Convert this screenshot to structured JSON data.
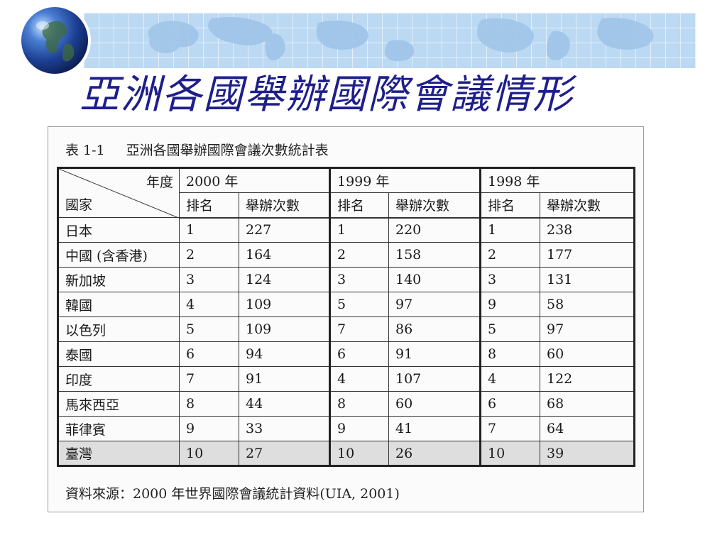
{
  "slide": {
    "title": "亞洲各國舉辦國際會議情形"
  },
  "table": {
    "caption_label": "表 1-1",
    "caption_title": "亞洲各國舉辦國際會議次數統計表",
    "corner_year_label": "年度",
    "corner_country_label": "國家",
    "years": [
      "2000 年",
      "1999 年",
      "1998 年"
    ],
    "sub_headers": {
      "rank": "排名",
      "count": "舉辦次數"
    },
    "rows": [
      {
        "country": "日本",
        "cells": [
          "1",
          "227",
          "1",
          "220",
          "1",
          "238"
        ]
      },
      {
        "country": "中國 (含香港)",
        "cells": [
          "2",
          "164",
          "2",
          "158",
          "2",
          "177"
        ]
      },
      {
        "country": "新加坡",
        "cells": [
          "3",
          "124",
          "3",
          "140",
          "3",
          "131"
        ]
      },
      {
        "country": "韓國",
        "cells": [
          "4",
          "109",
          "5",
          "97",
          "9",
          "58"
        ]
      },
      {
        "country": "以色列",
        "cells": [
          "5",
          "109",
          "7",
          "86",
          "5",
          "97"
        ]
      },
      {
        "country": "泰國",
        "cells": [
          "6",
          "94",
          "6",
          "91",
          "8",
          "60"
        ]
      },
      {
        "country": "印度",
        "cells": [
          "7",
          "91",
          "4",
          "107",
          "4",
          "122"
        ]
      },
      {
        "country": "馬來西亞",
        "cells": [
          "8",
          "44",
          "8",
          "60",
          "6",
          "68"
        ]
      },
      {
        "country": "菲律賓",
        "cells": [
          "9",
          "33",
          "9",
          "41",
          "7",
          "64"
        ]
      },
      {
        "country": "臺灣",
        "cells": [
          "10",
          "27",
          "10",
          "26",
          "10",
          "39"
        ],
        "highlight": true
      }
    ],
    "source": "資料來源：2000 年世界國際會議統計資料(UIA, 2001)"
  },
  "colors": {
    "title": "#1e1e8c",
    "banner": "#bcd9f3",
    "highlight_row": "#dedede"
  }
}
